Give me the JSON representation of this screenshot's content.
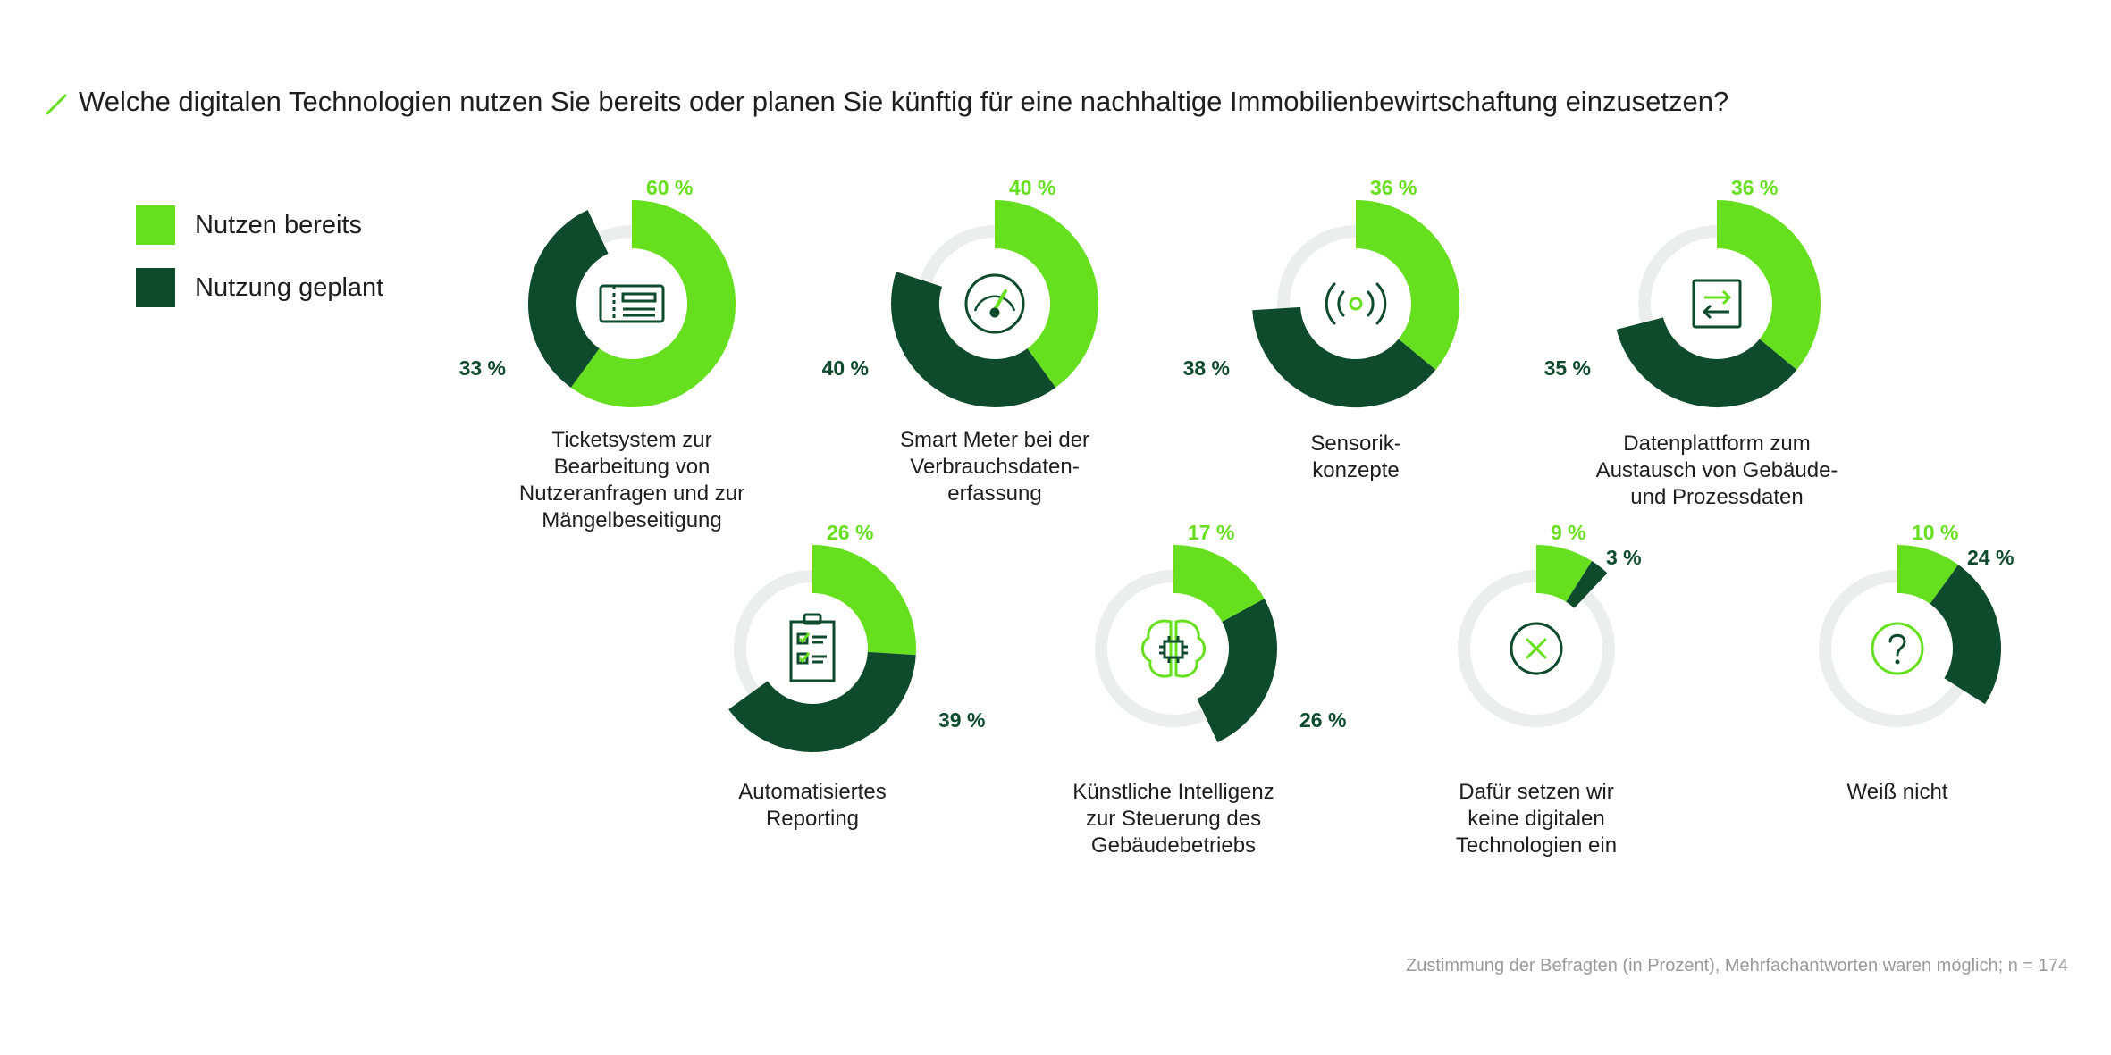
{
  "colors": {
    "used": "#66e01e",
    "planned": "#0e4a2c",
    "track": "#ebeeec",
    "icon": "#0e4a2c",
    "icon_accent": "#66e01e",
    "footnote": "#9a9a9a"
  },
  "title": "Welche digitalen Technologien nutzen Sie bereits oder planen Sie künftig für eine nachhaltige Immobilienbewirtschaftung einzusetzen?",
  "legend": {
    "used": "Nutzen bereits",
    "planned": "Nutzung geplant"
  },
  "footnote": "Zustimmung der Befragten (in Prozent), Mehrfachantworten waren möglich; n = 174",
  "chart_data": {
    "type": "pie",
    "variant": "donut",
    "unit": "%",
    "series": [
      {
        "name": "Nutzen bereits",
        "key": "used"
      },
      {
        "name": "Nutzung geplant",
        "key": "planned"
      }
    ],
    "items": [
      {
        "id": "ticketsystem",
        "caption": [
          "Ticketsystem zur",
          "Bearbeitung von",
          "Nutzeranfragen und zur",
          "Mängelbeseitigung"
        ],
        "used": 60,
        "planned": 33,
        "used_label": "60 %",
        "planned_label": "33 %",
        "icon": "ticket-icon"
      },
      {
        "id": "smart-meter",
        "caption": [
          "Smart Meter bei der",
          "Verbrauchsdaten-",
          "erfassung"
        ],
        "used": 40,
        "planned": 40,
        "used_label": "40 %",
        "planned_label": "40 %",
        "icon": "gauge-icon"
      },
      {
        "id": "sensorik",
        "caption": [
          "Sensorik-",
          "konzepte"
        ],
        "used": 36,
        "planned": 38,
        "used_label": "36 %",
        "planned_label": "38 %",
        "icon": "sensor-icon"
      },
      {
        "id": "datenplattform",
        "caption": [
          "Datenplattform zum",
          "Austausch von Gebäude-",
          "und Prozessdaten"
        ],
        "used": 36,
        "planned": 35,
        "used_label": "36 %",
        "planned_label": "35 %",
        "icon": "data-exchange-icon"
      },
      {
        "id": "reporting",
        "caption": [
          "Automatisiertes",
          "Reporting"
        ],
        "used": 26,
        "planned": 39,
        "used_label": "26 %",
        "planned_label": "39 %",
        "icon": "clipboard-icon"
      },
      {
        "id": "ki",
        "caption": [
          "Künstliche Intelligenz",
          "zur Steuerung des",
          "Gebäudebetriebs"
        ],
        "used": 17,
        "planned": 26,
        "used_label": "17 %",
        "planned_label": "26 %",
        "icon": "brain-chip-icon"
      },
      {
        "id": "keine",
        "caption": [
          "Dafür setzen wir",
          "keine digitalen",
          "Technologien ein"
        ],
        "used": 9,
        "planned": 3,
        "used_label": "9 %",
        "planned_label": "3 %",
        "icon": "x-circle-icon"
      },
      {
        "id": "weiss-nicht",
        "caption": [
          "Weiß nicht"
        ],
        "used": 10,
        "planned": 24,
        "used_label": "10 %",
        "planned_label": "24 %",
        "icon": "question-circle-icon"
      }
    ]
  }
}
